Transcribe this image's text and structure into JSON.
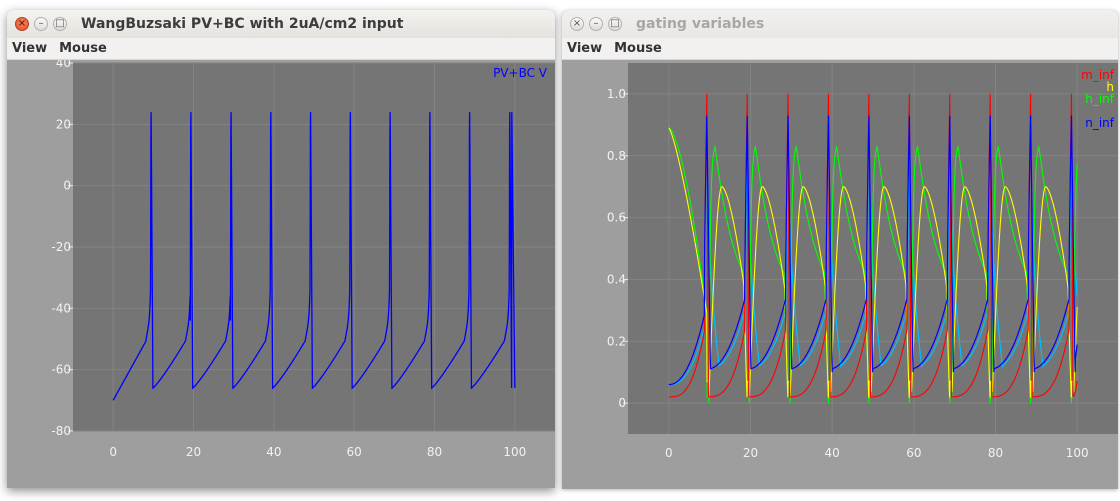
{
  "windows": [
    {
      "title": "WangBuzsaki PV+BC with 2uA/cm2 input",
      "menu": [
        "View",
        "Mouse"
      ],
      "title_active": true
    },
    {
      "title": "gating variables",
      "menu": [
        "View",
        "Mouse"
      ],
      "title_active": false
    }
  ],
  "chart_data": [
    {
      "type": "line",
      "xlim": [
        -10,
        110
      ],
      "ylim": [
        -80,
        40
      ],
      "x_ticks": [
        "0",
        "20",
        "40",
        "60",
        "80",
        "100"
      ],
      "y_ticks": [
        "40",
        "20",
        "0",
        "-20",
        "-40",
        "-60",
        "-80"
      ],
      "grid": true,
      "legend_position": "top-right",
      "spike_times": [
        9.3,
        19.2,
        29.2,
        39.1,
        49.0,
        58.9,
        68.8,
        78.7,
        88.6,
        98.6
      ],
      "series": [
        {
          "name": "PV+BC V",
          "color": "#0000ff",
          "rest_after_spike": -66,
          "start": -70,
          "pre_spike_threshold": -44,
          "peak": 30
        }
      ]
    },
    {
      "type": "line",
      "xlim": [
        -10,
        110
      ],
      "ylim": [
        -0.1,
        1.1
      ],
      "x_ticks": [
        "0",
        "20",
        "40",
        "60",
        "80",
        "100"
      ],
      "y_ticks": [
        "1.0",
        "0.8",
        "0.6",
        "0.4",
        "0.2",
        "0"
      ],
      "grid": true,
      "legend_position": "top-right",
      "spike_times": [
        9.3,
        19.2,
        29.2,
        39.1,
        49.0,
        58.9,
        68.8,
        78.7,
        88.6,
        98.6
      ],
      "series": [
        {
          "name": "m_inf",
          "color": "#ff0000",
          "baseline": 0.02,
          "peak": 1.0
        },
        {
          "name": "h",
          "color": "#ffff00",
          "start": 0.89,
          "peak_after_spike": 0.7,
          "min": 0.02
        },
        {
          "name": "h_inf",
          "color": "#00ff00",
          "start": 0.89,
          "peak_after_spike": 0.84,
          "min": 0.0
        },
        {
          "name": "n_inf",
          "color": "#0000ff",
          "baseline": 0.06,
          "peak": 0.93
        },
        {
          "name": "",
          "color": "#00bfff",
          "baseline": 0.06,
          "peak": 0.9
        }
      ]
    }
  ]
}
